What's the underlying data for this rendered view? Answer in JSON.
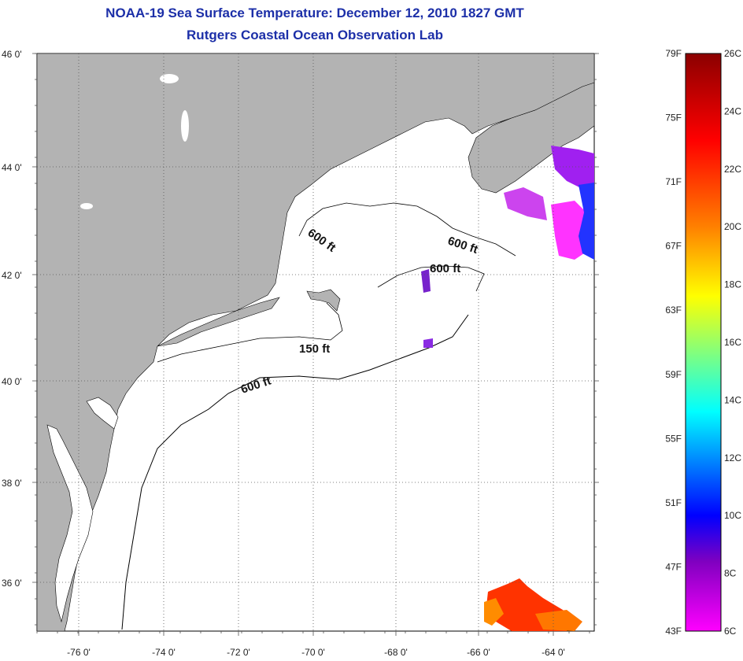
{
  "title": {
    "line1": "NOAA-19 Sea Surface Temperature:  December 12, 2010 1827 GMT",
    "line2": "Rutgers Coastal Ocean Observation Lab"
  },
  "map": {
    "lat_labels": [
      "46 0'",
      "44 0'",
      "42 0'",
      "40 0'",
      "38 0'",
      "36 0'"
    ],
    "lon_labels": [
      "-76 0'",
      "-74 0'",
      "-72 0'",
      "-70 0'",
      "-68 0'",
      "-66 0'",
      "-64 0'"
    ],
    "contour_labels": [
      "600 ft",
      "600 ft",
      "600 ft",
      "150 ft",
      "600 ft"
    ],
    "colors": {
      "land": "#b3b3b3",
      "ocean": "#ffffff",
      "grid": "#555555",
      "contour": "#000000"
    }
  },
  "colorbar": {
    "fahrenheit_labels": [
      "79F",
      "75F",
      "71F",
      "67F",
      "63F",
      "59F",
      "55F",
      "51F",
      "47F",
      "43F"
    ],
    "celsius_labels": [
      "26C",
      "24C",
      "22C",
      "20C",
      "18C",
      "16C",
      "14C",
      "12C",
      "10C",
      "8C",
      "6C"
    ],
    "range_c": [
      6,
      26
    ],
    "stops": [
      "#8b0000",
      "#ff0000",
      "#ff8000",
      "#ffff00",
      "#00ffff",
      "#0000ff",
      "#8000c0",
      "#ff00ff"
    ]
  }
}
